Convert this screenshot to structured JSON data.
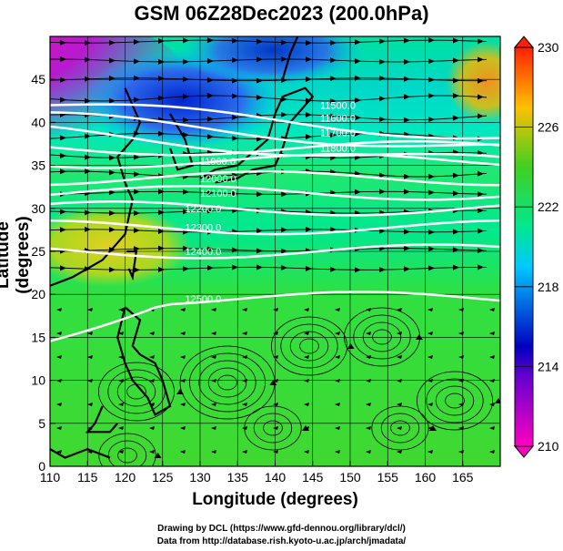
{
  "title": "GSM 06Z28Dec2023 (200.0hPa)",
  "xlabel": "Longitude (degrees)",
  "ylabel": "Latitude (degrees)",
  "credits": [
    "Drawing by DCL (https://www.gfd-dennou.org/library/dcl/)",
    "Data from http://database.rish.kyoto-u.ac.jp/arch/jmadata/"
  ],
  "axes": {
    "xlim": [
      110,
      170
    ],
    "ylim": [
      0,
      50
    ],
    "xticks": [
      "110",
      "115",
      "120",
      "125",
      "130",
      "135",
      "140",
      "145",
      "150",
      "155",
      "160",
      "165"
    ],
    "yticks": [
      "0",
      "5",
      "10",
      "15",
      "20",
      "25",
      "30",
      "35",
      "40",
      "45"
    ]
  },
  "colorbar": {
    "range": [
      210,
      230
    ],
    "labels": [
      "210",
      "214",
      "218",
      "222",
      "226",
      "230"
    ],
    "colors": [
      "#ff00c0",
      "#0000c0",
      "#00c8ff",
      "#00e080",
      "#40d020",
      "#ffc000",
      "#ff2000"
    ]
  },
  "contours": [
    {
      "label": "11500.0",
      "lat": 42.0
    },
    {
      "label": "11600.0",
      "lat": 40.5
    },
    {
      "label": "11700.0",
      "lat": 38.8
    },
    {
      "label": "11800.0",
      "lat": 37.0
    },
    {
      "label": "11900.0",
      "lat": 35.5
    },
    {
      "label": "12000.0",
      "lat": 33.5
    },
    {
      "label": "12100.0",
      "lat": 31.8
    },
    {
      "label": "12200.0",
      "lat": 30.0
    },
    {
      "label": "12300.0",
      "lat": 27.8
    },
    {
      "label": "12400.0",
      "lat": 25.0
    },
    {
      "label": "12500.0",
      "lat": 19.5
    }
  ]
}
